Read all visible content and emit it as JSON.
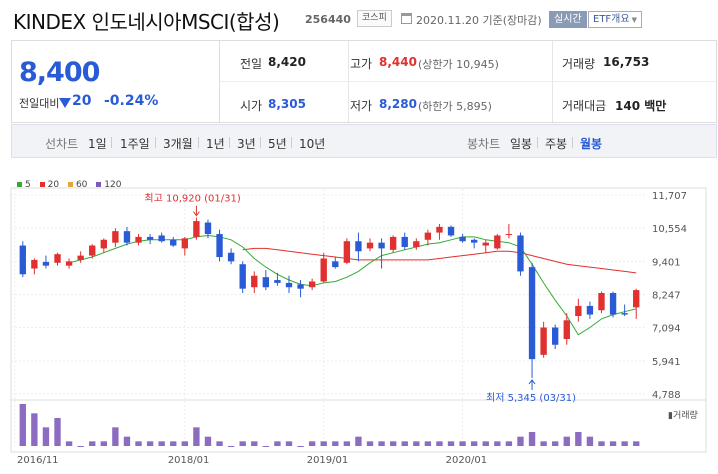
{
  "header": {
    "name": "KINDEX 인도네시아MSCI(합성)",
    "code": "256440",
    "market": "코스피",
    "date_text": "2020.11.20 기준(장마감)",
    "realtime_label": "실시간",
    "etf_button_label": "ETF개요"
  },
  "quote": {
    "price": "8,400",
    "change_label": "전일대비",
    "change_value": "20",
    "change_pct": "-0.24%",
    "prev_close_label": "전일",
    "prev_close": "8,420",
    "high_label": "고가",
    "high": "8,440",
    "upper_limit": "(상한가 10,945)",
    "volume_label": "거래량",
    "volume": "16,753",
    "open_label": "시가",
    "open": "8,305",
    "low_label": "저가",
    "low": "8,280",
    "lower_limit": "(하한가 5,895)",
    "trade_value_label": "거래대금",
    "trade_value": "140 백만"
  },
  "tabs": {
    "line_label": "선차트",
    "line_tabs": [
      "1일",
      "1주일",
      "3개월",
      "1년",
      "3년",
      "5년",
      "10년"
    ],
    "candle_label": "봉차트",
    "candle_tabs": [
      "일봉",
      "주봉",
      "월봉"
    ],
    "active_candle": "월봉"
  },
  "colors": {
    "up": "#e03030",
    "down": "#2a5bd7",
    "ma5": "#33aa33",
    "ma20": "#e03030",
    "ma60": "#e8a23a",
    "ma120": "#7a5bb5",
    "volume": "#8c6cc0"
  },
  "chart_data": {
    "type": "candlestick",
    "legend": [
      "5",
      "20",
      "60",
      "120"
    ],
    "y_ticks": [
      "11,707",
      "10,554",
      "9,401",
      "8,247",
      "7,094",
      "5,941",
      "4,788"
    ],
    "ylim": [
      4788,
      11707
    ],
    "x_ticks": [
      "2016/11",
      "2018/01",
      "2019/01",
      "2020/01"
    ],
    "volume_label": "거래량",
    "max_annotation": "최고 10,920 (01/31)",
    "min_annotation": "최저 5,345 (03/31)",
    "candles": [
      {
        "o": 9950,
        "h": 10100,
        "l": 8850,
        "c": 8950
      },
      {
        "o": 9150,
        "h": 9500,
        "l": 8950,
        "c": 9450
      },
      {
        "o": 9380,
        "h": 9600,
        "l": 9150,
        "c": 9250
      },
      {
        "o": 9350,
        "h": 9700,
        "l": 9250,
        "c": 9650
      },
      {
        "o": 9250,
        "h": 9500,
        "l": 9150,
        "c": 9400
      },
      {
        "o": 9450,
        "h": 9750,
        "l": 9350,
        "c": 9600
      },
      {
        "o": 9600,
        "h": 10000,
        "l": 9500,
        "c": 9950
      },
      {
        "o": 9850,
        "h": 10200,
        "l": 9700,
        "c": 10150
      },
      {
        "o": 10050,
        "h": 10550,
        "l": 9900,
        "c": 10450
      },
      {
        "o": 10450,
        "h": 10600,
        "l": 9950,
        "c": 10050
      },
      {
        "o": 10050,
        "h": 10350,
        "l": 9950,
        "c": 10250
      },
      {
        "o": 10250,
        "h": 10350,
        "l": 10000,
        "c": 10150
      },
      {
        "o": 10300,
        "h": 10400,
        "l": 10050,
        "c": 10100
      },
      {
        "o": 10150,
        "h": 10250,
        "l": 9900,
        "c": 9950
      },
      {
        "o": 9850,
        "h": 10250,
        "l": 9600,
        "c": 10200
      },
      {
        "o": 10250,
        "h": 10920,
        "l": 10150,
        "c": 10800
      },
      {
        "o": 10750,
        "h": 10850,
        "l": 10200,
        "c": 10350
      },
      {
        "o": 10350,
        "h": 10500,
        "l": 9400,
        "c": 9550
      },
      {
        "o": 9700,
        "h": 9850,
        "l": 9300,
        "c": 9400
      },
      {
        "o": 9300,
        "h": 9400,
        "l": 8300,
        "c": 8450
      },
      {
        "o": 8500,
        "h": 9050,
        "l": 8300,
        "c": 8900
      },
      {
        "o": 8850,
        "h": 9100,
        "l": 8400,
        "c": 8500
      },
      {
        "o": 8750,
        "h": 9000,
        "l": 8550,
        "c": 8650
      },
      {
        "o": 8650,
        "h": 8900,
        "l": 8300,
        "c": 8500
      },
      {
        "o": 8600,
        "h": 8750,
        "l": 8150,
        "c": 8450
      },
      {
        "o": 8500,
        "h": 8800,
        "l": 8400,
        "c": 8700
      },
      {
        "o": 8700,
        "h": 9700,
        "l": 8650,
        "c": 9500
      },
      {
        "o": 9400,
        "h": 9550,
        "l": 9150,
        "c": 9200
      },
      {
        "o": 9350,
        "h": 10200,
        "l": 9300,
        "c": 10100
      },
      {
        "o": 10100,
        "h": 10400,
        "l": 9400,
        "c": 9750
      },
      {
        "o": 9850,
        "h": 10200,
        "l": 9750,
        "c": 10050
      },
      {
        "o": 10050,
        "h": 10200,
        "l": 9150,
        "c": 9850
      },
      {
        "o": 9800,
        "h": 10300,
        "l": 9700,
        "c": 10250
      },
      {
        "o": 10250,
        "h": 10400,
        "l": 9800,
        "c": 9900
      },
      {
        "o": 9900,
        "h": 10200,
        "l": 9800,
        "c": 10100
      },
      {
        "o": 10150,
        "h": 10500,
        "l": 9950,
        "c": 10400
      },
      {
        "o": 10400,
        "h": 10700,
        "l": 10150,
        "c": 10600
      },
      {
        "o": 10600,
        "h": 10650,
        "l": 10250,
        "c": 10300
      },
      {
        "o": 10250,
        "h": 10350,
        "l": 10050,
        "c": 10100
      },
      {
        "o": 10150,
        "h": 10200,
        "l": 9850,
        "c": 10050
      },
      {
        "o": 9950,
        "h": 10150,
        "l": 9700,
        "c": 10050
      },
      {
        "o": 9850,
        "h": 10350,
        "l": 9800,
        "c": 10300
      },
      {
        "o": 10350,
        "h": 10700,
        "l": 10200,
        "c": 10350
      },
      {
        "o": 10300,
        "h": 10400,
        "l": 8900,
        "c": 9050
      },
      {
        "o": 9200,
        "h": 9350,
        "l": 5345,
        "c": 6000
      },
      {
        "o": 6150,
        "h": 7300,
        "l": 6050,
        "c": 7100
      },
      {
        "o": 7100,
        "h": 7200,
        "l": 6350,
        "c": 6500
      },
      {
        "o": 6700,
        "h": 7600,
        "l": 6500,
        "c": 7350
      },
      {
        "o": 7500,
        "h": 8100,
        "l": 7300,
        "c": 7850
      },
      {
        "o": 7850,
        "h": 8000,
        "l": 7400,
        "c": 7550
      },
      {
        "o": 7700,
        "h": 8350,
        "l": 7600,
        "c": 8300
      },
      {
        "o": 8300,
        "h": 8350,
        "l": 7450,
        "c": 7550
      },
      {
        "o": 7600,
        "h": 7900,
        "l": 7500,
        "c": 7550
      },
      {
        "o": 7800,
        "h": 8450,
        "l": 7400,
        "c": 8400
      }
    ],
    "volumes": [
      9,
      7,
      4,
      6,
      1,
      0,
      1,
      1,
      4,
      2,
      1,
      1,
      1,
      1,
      1,
      4,
      2,
      1,
      0,
      1,
      1,
      0,
      1,
      1,
      0,
      1,
      1,
      1,
      1,
      2,
      1,
      1,
      1,
      1,
      1,
      1,
      1,
      1,
      1,
      1,
      1,
      1,
      1,
      2,
      3,
      1,
      1,
      2,
      3,
      2,
      1,
      1,
      1,
      1
    ],
    "ma5_approx": [
      null,
      null,
      null,
      null,
      9350,
      9450,
      9550,
      9700,
      9850,
      10000,
      10100,
      10150,
      10150,
      10150,
      10150,
      10250,
      10300,
      10250,
      10150,
      9900,
      9500,
      9200,
      8950,
      8750,
      8600,
      8550,
      8650,
      8700,
      8850,
      9050,
      9350,
      9600,
      9700,
      9800,
      9900,
      10000,
      10050,
      10150,
      10250,
      10250,
      10150,
      10100,
      10050,
      9900,
      9300,
      8650,
      8050,
      7500,
      6850,
      7100,
      7400,
      7550,
      7650,
      7750
    ],
    "ma20_approx": [
      null,
      null,
      null,
      null,
      null,
      null,
      null,
      null,
      null,
      null,
      null,
      null,
      null,
      null,
      null,
      null,
      null,
      null,
      null,
      9800,
      9850,
      9850,
      9800,
      9750,
      9700,
      9650,
      9600,
      9550,
      9500,
      9450,
      9450,
      9450,
      9450,
      9450,
      9450,
      9450,
      9500,
      9550,
      9600,
      9650,
      9700,
      9750,
      9750,
      9700,
      9600,
      9500,
      9400,
      9300,
      9250,
      9200,
      9150,
      9100,
      9050,
      9000
    ]
  }
}
